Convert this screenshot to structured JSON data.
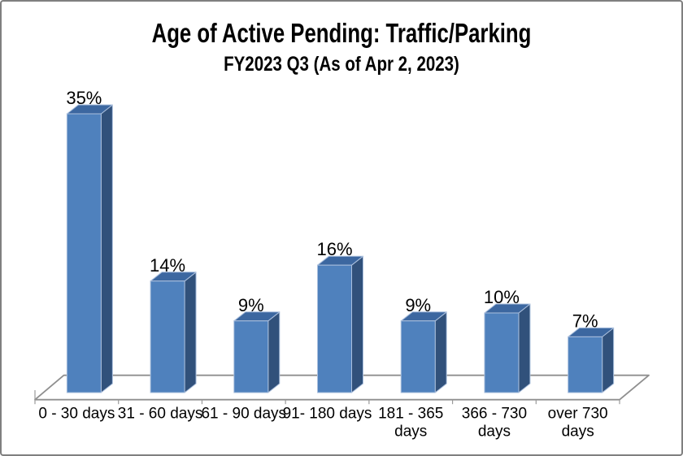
{
  "frame": {
    "border_color": "#7f7f7f",
    "background": "#ffffff"
  },
  "chart_data": {
    "type": "bar",
    "style": "3d-clustered-column",
    "title": "Age of Active Pending: Traffic/Parking",
    "subtitle": "FY2023 Q3 (As of Apr 2, 2023)",
    "categories": [
      "0 - 30 days",
      "31 - 60 days",
      "61 - 90 days",
      "91- 180 days",
      "181 - 365 days",
      "366 - 730 days",
      "over 730 days"
    ],
    "category_label_lines": [
      [
        "0 - 30 days"
      ],
      [
        "31 - 60 days"
      ],
      [
        "61 - 90 days"
      ],
      [
        "91- 180 days"
      ],
      [
        "181 - 365",
        "days"
      ],
      [
        "366 - 730",
        "days"
      ],
      [
        "over 730",
        "days"
      ]
    ],
    "values": [
      35,
      14,
      9,
      16,
      9,
      10,
      7
    ],
    "data_labels": [
      "35%",
      "14%",
      "9%",
      "16%",
      "9%",
      "10%",
      "7%"
    ],
    "unit": "%",
    "xlabel": "",
    "ylabel": "",
    "ylim": [
      0,
      37
    ],
    "grid": false,
    "legend": false,
    "value_axis_visible": false,
    "colors": {
      "bar_front": "#4f81bd",
      "bar_top": "#3c67a0",
      "bar_side": "#31517b",
      "bar_edge": "#aabfdd",
      "axis": "#8f8f8f",
      "tick": "#9a9a9a",
      "text": "#000000"
    }
  }
}
